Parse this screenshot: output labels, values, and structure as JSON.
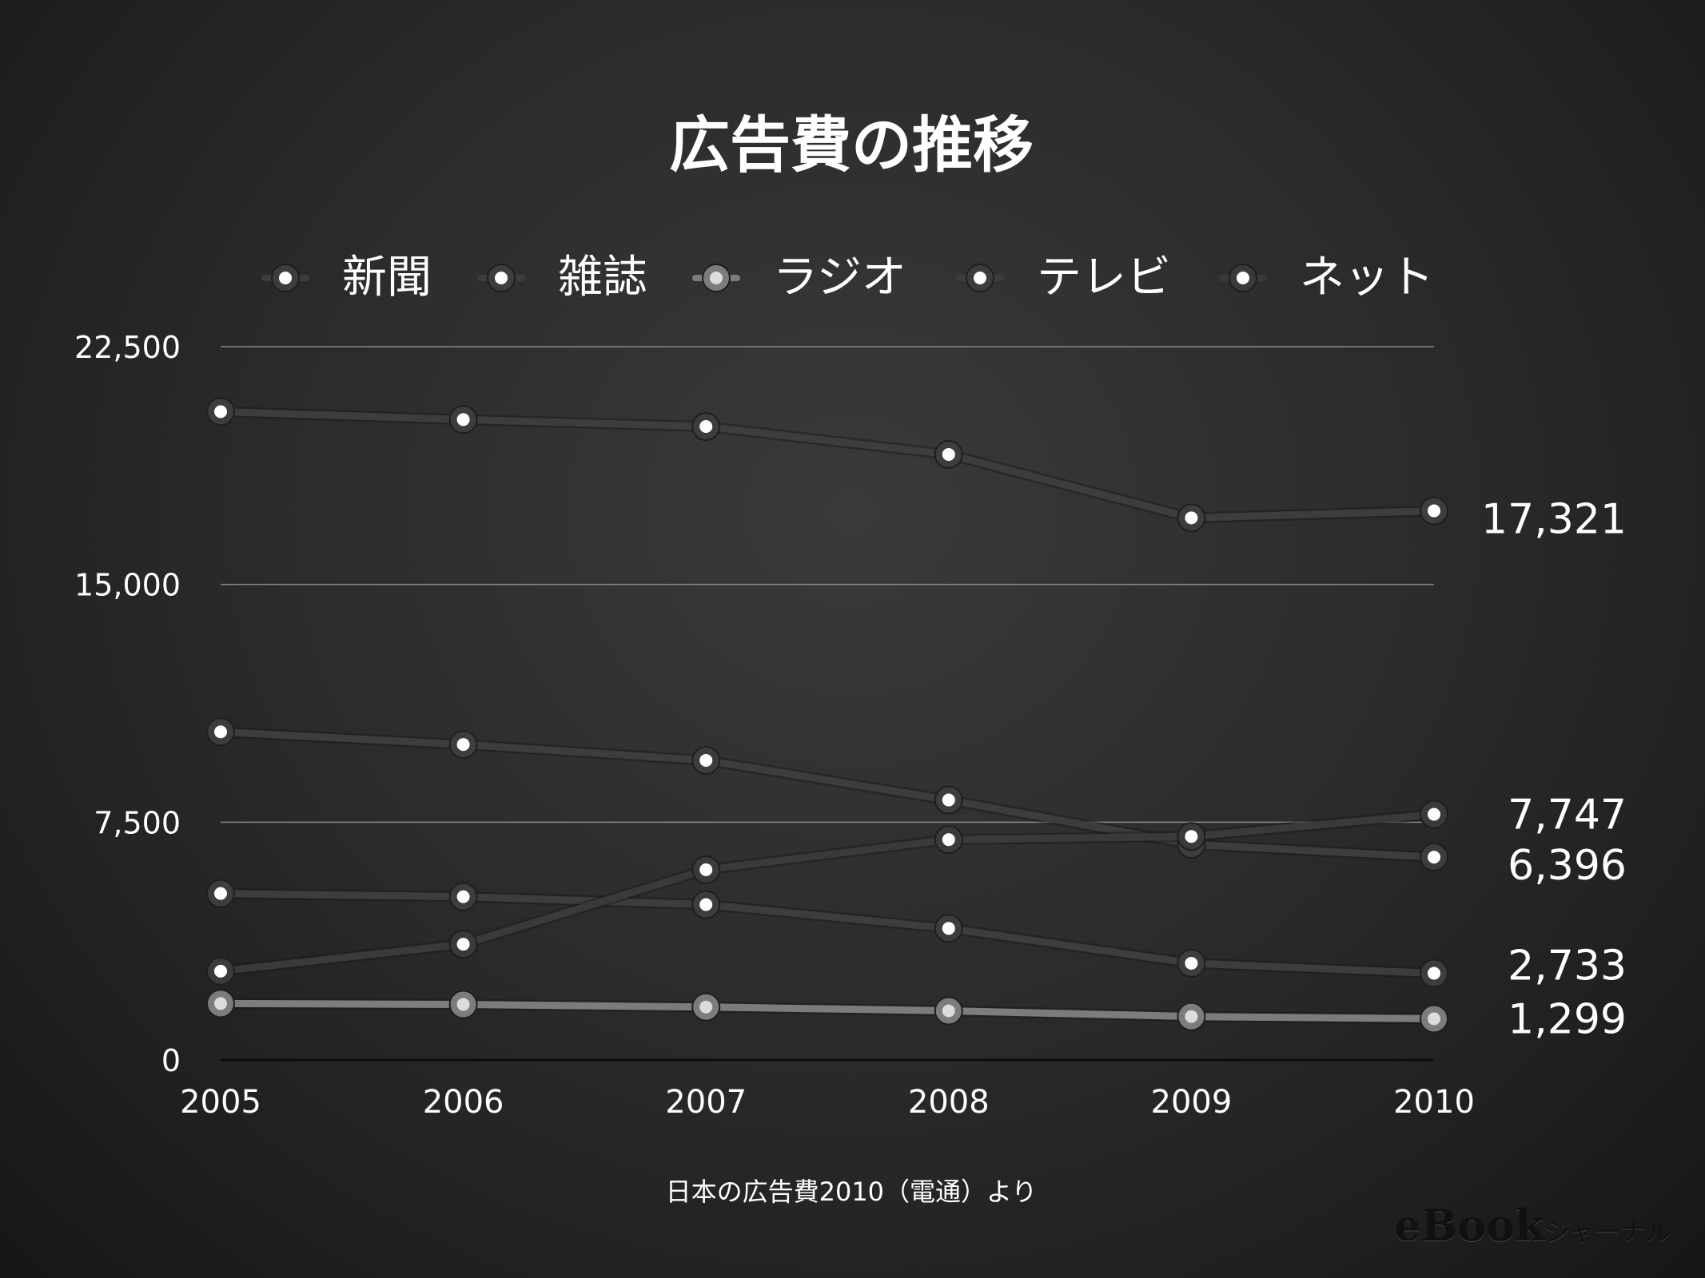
{
  "chart_data": {
    "type": "line",
    "title": "広告費の推移",
    "source": "日本の広告費2010（電通）より",
    "categories": [
      "2005",
      "2006",
      "2007",
      "2008",
      "2009",
      "2010"
    ],
    "ylim": [
      0,
      22500
    ],
    "yticks": [
      "0",
      "7,500",
      "15,000",
      "22,500"
    ],
    "ytick_values": [
      0,
      7500,
      15000,
      22500
    ],
    "grid": true,
    "legend_position": "top",
    "series": [
      {
        "name": "新聞",
        "values": [
          20450,
          20200,
          19980,
          19100,
          17100,
          17321
        ],
        "end_label": "17,321",
        "color": "#3d3d3d",
        "dot": "#ffffff"
      },
      {
        "name": "雑誌",
        "values": [
          5250,
          5150,
          4900,
          4150,
          3050,
          2733
        ],
        "end_label": "2,733",
        "color": "#3d3d3d",
        "dot": "#ffffff"
      },
      {
        "name": "ラジオ",
        "values": [
          1780,
          1750,
          1670,
          1550,
          1370,
          1299
        ],
        "end_label": "1,299",
        "color": "#7c7c7c",
        "dot": "#dcdcdc"
      },
      {
        "name": "テレビ",
        "values": [
          10350,
          9950,
          9450,
          8200,
          6800,
          6396
        ],
        "end_label": "6,396",
        "color": "#3d3d3d",
        "dot": "#ffffff"
      },
      {
        "name": "ネット",
        "values": [
          2800,
          3650,
          6000,
          6950,
          7050,
          7747
        ],
        "end_label": "7,747",
        "color": "#3a3a3a",
        "dot": "#ffffff"
      }
    ]
  },
  "watermark": {
    "e": "e",
    "book": "Book",
    "ja": "ジャーナル"
  }
}
